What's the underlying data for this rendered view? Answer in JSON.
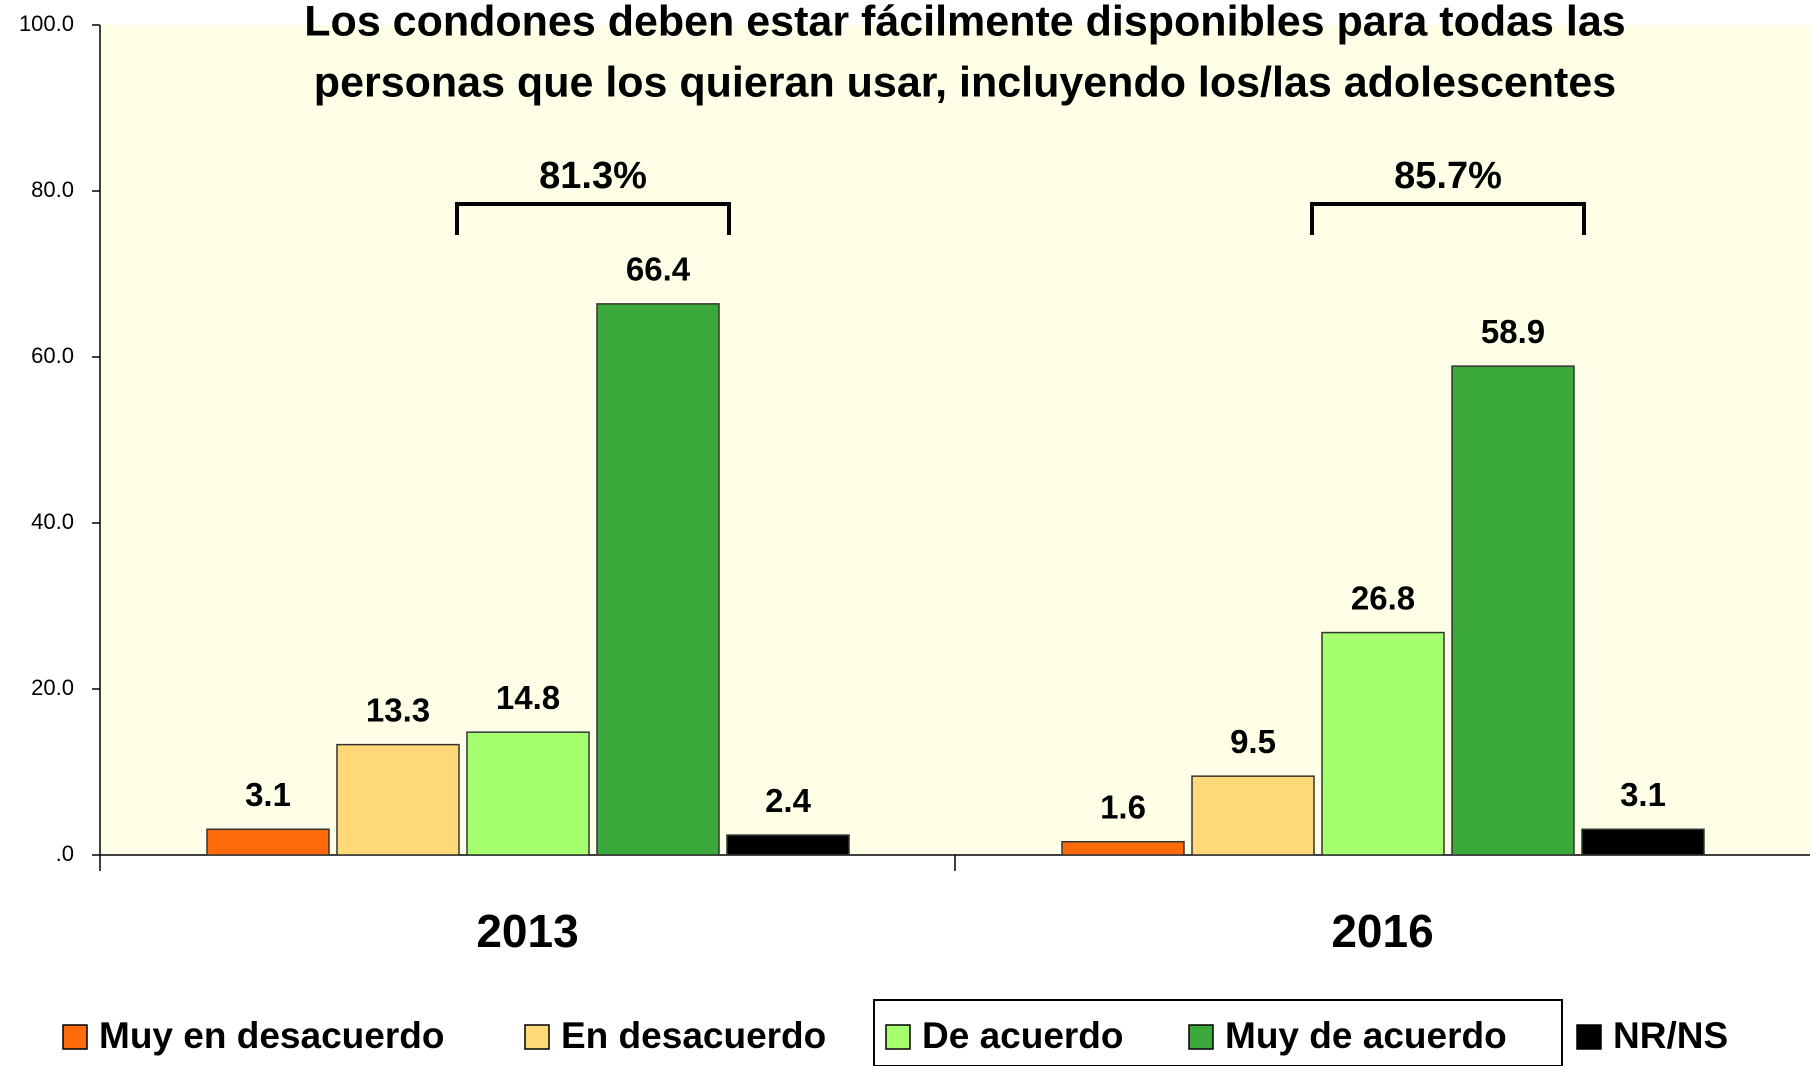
{
  "chart_data": {
    "type": "bar",
    "title": [
      "Los condones deben estar fácilmente disponibles para todas las",
      "personas que los quieran usar, incluyendo los/las adolescentes"
    ],
    "categories": [
      "2013",
      "2016"
    ],
    "series": [
      {
        "name": "Muy en desacuerdo",
        "color": "#ff6a0a",
        "values": [
          3.1,
          1.6
        ]
      },
      {
        "name": "En desacuerdo",
        "color": "#ffd878",
        "values": [
          13.3,
          9.5
        ]
      },
      {
        "name": "De acuerdo",
        "color": "#a6ff6e",
        "values": [
          14.8,
          26.8
        ]
      },
      {
        "name": "Muy de acuerdo",
        "color": "#3aa83a",
        "values": [
          66.4,
          58.9
        ]
      },
      {
        "name": "NR/NS",
        "color": "#000000",
        "values": [
          2.4,
          3.1
        ]
      }
    ],
    "annotations": [
      "81.3%",
      "85.7%"
    ],
    "ylim": [
      0,
      100
    ],
    "yticks": [
      {
        "value": 0,
        "label": ".0"
      },
      {
        "value": 20,
        "label": "20.0"
      },
      {
        "value": 40,
        "label": "40.0"
      },
      {
        "value": 60,
        "label": "60.0"
      },
      {
        "value": 80,
        "label": "80.0"
      },
      {
        "value": 100,
        "label": "100.0"
      }
    ],
    "legend": "bottom"
  }
}
